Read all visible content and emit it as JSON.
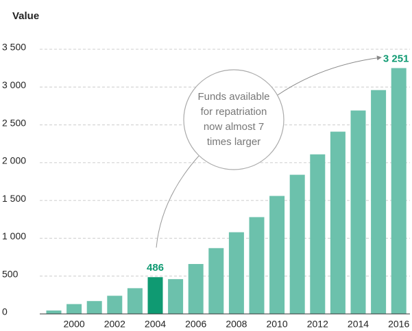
{
  "chart_data": {
    "type": "bar",
    "title": "Value",
    "categories": [
      null,
      "2000",
      null,
      "2002",
      null,
      "2004",
      null,
      "2006",
      null,
      "2008",
      null,
      "2010",
      null,
      "2012",
      null,
      "2014",
      null,
      "2016"
    ],
    "values": [
      45,
      130,
      170,
      240,
      340,
      486,
      460,
      660,
      870,
      1080,
      1280,
      1560,
      1840,
      2110,
      2410,
      2690,
      2960,
      3251
    ],
    "value_labels": [
      null,
      null,
      null,
      null,
      null,
      "486",
      null,
      null,
      null,
      null,
      null,
      null,
      null,
      null,
      null,
      null,
      null,
      "3 251"
    ],
    "colors": [
      "#6cc1ac",
      "#6cc1ac",
      "#6cc1ac",
      "#6cc1ac",
      "#6cc1ac",
      "#0f9a72",
      "#6cc1ac",
      "#6cc1ac",
      "#6cc1ac",
      "#6cc1ac",
      "#6cc1ac",
      "#6cc1ac",
      "#6cc1ac",
      "#6cc1ac",
      "#6cc1ac",
      "#6cc1ac",
      "#6cc1ac",
      "#6cc1ac"
    ],
    "label_color": "#0f9a72",
    "ylim": [
      0,
      3500
    ],
    "yticks": [
      0,
      500,
      {
        "value": 1000,
        "label": "1 000"
      },
      {
        "value": 1500,
        "label": "1 500"
      },
      {
        "value": 2000,
        "label": "2 000"
      },
      {
        "value": 2500,
        "label": "2 500"
      },
      {
        "value": 3000,
        "label": "3 000"
      },
      {
        "value": 3500,
        "label": "3 500"
      }
    ],
    "grid": true,
    "annotation": [
      "Funds available",
      "for repatriation",
      "now almost 7",
      "times larger"
    ]
  }
}
